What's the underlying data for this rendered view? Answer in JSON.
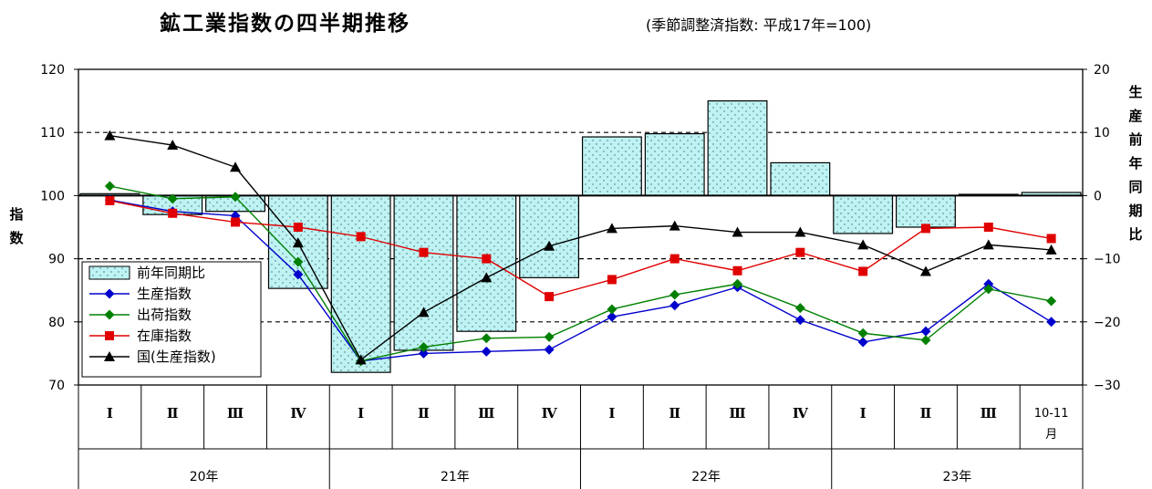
{
  "title": "鉱工業指数の四半期推移",
  "subtitle": "(季節調整済指数: 平成17年=100)",
  "left_axis_label": [
    "指",
    "数"
  ],
  "right_axis_label": [
    "生",
    "産",
    "前",
    "年",
    "同",
    "期",
    "比"
  ],
  "chart_data": {
    "type": "bar+line",
    "categories": [
      "Ⅰ",
      "Ⅱ",
      "Ⅲ",
      "Ⅳ",
      "Ⅰ",
      "Ⅱ",
      "Ⅲ",
      "Ⅳ",
      "Ⅰ",
      "Ⅱ",
      "Ⅲ",
      "Ⅳ",
      "Ⅰ",
      "Ⅱ",
      "Ⅲ",
      "10-11月"
    ],
    "years": [
      {
        "label": "20年",
        "span": [
          0,
          3
        ]
      },
      {
        "label": "21年",
        "span": [
          4,
          7
        ]
      },
      {
        "label": "22年",
        "span": [
          8,
          11
        ]
      },
      {
        "label": "23年",
        "span": [
          12,
          15
        ]
      }
    ],
    "ylim_left": [
      70,
      120
    ],
    "yticks_left": [
      70,
      80,
      90,
      100,
      110,
      120
    ],
    "ylim_right": [
      -30,
      20
    ],
    "yticks_right": [
      -30,
      -20,
      -10,
      0,
      10,
      20
    ],
    "grid_right_values": [
      -20,
      -10,
      10
    ],
    "bars": {
      "name": "前年同期比",
      "axis": "right",
      "color": "#bff3f3",
      "values": [
        0.3,
        -3,
        -2.5,
        -14.7,
        -28,
        -24.5,
        -21.5,
        -13,
        9.3,
        9.8,
        15,
        5.2,
        -6,
        -5,
        0.2,
        0.5
      ]
    },
    "series": [
      {
        "name": "生産指数",
        "color": "#0000cc",
        "marker": "diamond",
        "values": [
          99.3,
          97.5,
          96.8,
          87.5,
          73.8,
          75.0,
          75.3,
          75.6,
          80.8,
          82.6,
          85.5,
          80.3,
          76.8,
          78.5,
          86.0,
          80.0
        ]
      },
      {
        "name": "出荷指数",
        "color": "#008000",
        "marker": "diamond",
        "values": [
          101.5,
          99.5,
          99.8,
          89.5,
          73.8,
          76.0,
          77.4,
          77.6,
          82.0,
          84.3,
          86.0,
          82.2,
          78.2,
          77.1,
          85.2,
          83.3
        ]
      },
      {
        "name": "在庫指数",
        "color": "#e00000",
        "marker": "square",
        "values": [
          99.2,
          97.2,
          95.8,
          95.0,
          93.5,
          91.0,
          90.0,
          84.0,
          86.7,
          90.0,
          88.1,
          91.0,
          88.0,
          94.8,
          95.0,
          93.2
        ]
      },
      {
        "name": "国(生産指数)",
        "color": "#000000",
        "marker": "triangle",
        "values": [
          109.5,
          108.0,
          104.5,
          92.5,
          74.0,
          81.5,
          87.0,
          92.0,
          94.8,
          95.2,
          94.2,
          94.2,
          92.2,
          88.0,
          92.2,
          91.4
        ]
      }
    ]
  }
}
